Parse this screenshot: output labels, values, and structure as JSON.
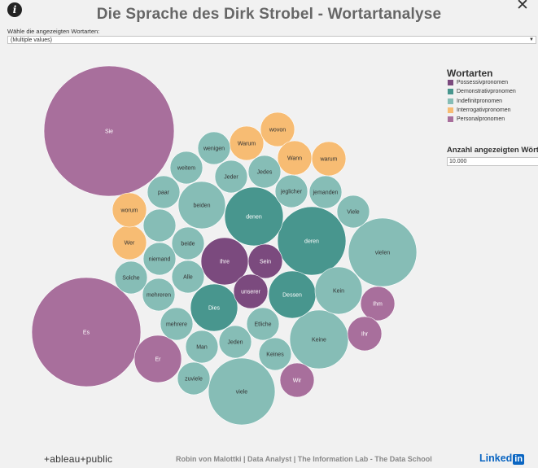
{
  "header": {
    "title": "Die Sprache des Dirk Strobel - Wortartanalyse",
    "info_icon": "info-icon",
    "close_icon": "close-icon"
  },
  "filter": {
    "label": "Wähle die angezeigten Wortarten:",
    "value": "(Multiple values)"
  },
  "legend": {
    "title": "Wortarten",
    "items": [
      {
        "label": "Possessivpronomen",
        "color": "#7b4a7e"
      },
      {
        "label": "Demonstrativpronomen",
        "color": "#48968e"
      },
      {
        "label": "Indefinitpronomen",
        "color": "#86bdb6"
      },
      {
        "label": "Interrogativpronomen",
        "color": "#f7bc73"
      },
      {
        "label": "Personalpronomen",
        "color": "#a86f9c"
      }
    ]
  },
  "parameter": {
    "title": "Anzahl angezeigten Wörter",
    "value": "10.000"
  },
  "chart_data": {
    "type": "bubble",
    "category_colors": {
      "Possessivpronomen": "#7b4a7e",
      "Demonstrativpronomen": "#48968e",
      "Indefinitpronomen": "#86bdb6",
      "Interrogativpronomen": "#f7bc73",
      "Personalpronomen": "#a86f9c"
    },
    "bubbles": [
      {
        "word": "Sie",
        "category": "Personalpronomen"
      },
      {
        "word": "Es",
        "category": "Personalpronomen"
      },
      {
        "word": "vielen",
        "category": "Indefinitpronomen"
      },
      {
        "word": "deren",
        "category": "Demonstrativpronomen"
      },
      {
        "word": "viele",
        "category": "Indefinitpronomen"
      },
      {
        "word": "Keine",
        "category": "Indefinitpronomen"
      },
      {
        "word": "denen",
        "category": "Demonstrativpronomen"
      },
      {
        "word": "Ihre",
        "category": "Possessivpronomen"
      },
      {
        "word": "Dies",
        "category": "Demonstrativpronomen"
      },
      {
        "word": "Dessen",
        "category": "Demonstrativpronomen"
      },
      {
        "word": "beiden",
        "category": "Indefinitpronomen"
      },
      {
        "word": "Er",
        "category": "Personalpronomen"
      },
      {
        "word": "Kein",
        "category": "Indefinitpronomen"
      },
      {
        "word": "Sein",
        "category": "Possessivpronomen"
      },
      {
        "word": "unserer",
        "category": "Possessivpronomen"
      },
      {
        "word": "Wer",
        "category": "Interrogativpronomen"
      },
      {
        "word": "Warum",
        "category": "Interrogativpronomen"
      },
      {
        "word": "wovon",
        "category": "Interrogativpronomen"
      },
      {
        "word": "Wann",
        "category": "Interrogativpronomen"
      },
      {
        "word": "warum",
        "category": "Interrogativpronomen"
      },
      {
        "word": "worum",
        "category": "Interrogativpronomen"
      },
      {
        "word": "Ihm",
        "category": "Personalpronomen"
      },
      {
        "word": "Ihr",
        "category": "Personalpronomen"
      },
      {
        "word": "Wir",
        "category": "Personalpronomen"
      },
      {
        "word": "Jedes",
        "category": "Indefinitpronomen"
      },
      {
        "word": "jeglicher",
        "category": "Indefinitpronomen"
      },
      {
        "word": "jemanden",
        "category": "Indefinitpronomen"
      },
      {
        "word": "Viele",
        "category": "Indefinitpronomen"
      },
      {
        "word": "Jeder",
        "category": "Indefinitpronomen"
      },
      {
        "word": "wenigen",
        "category": "Indefinitpronomen"
      },
      {
        "word": "weitem",
        "category": "Indefinitpronomen"
      },
      {
        "word": "paar",
        "category": "Indefinitpronomen"
      },
      {
        "word": "beide",
        "category": "Indefinitpronomen"
      },
      {
        "word": "niemand",
        "category": "Indefinitpronomen"
      },
      {
        "word": "Alle",
        "category": "Indefinitpronomen"
      },
      {
        "word": "Solche",
        "category": "Indefinitpronomen"
      },
      {
        "word": "mehreren",
        "category": "Indefinitpronomen"
      },
      {
        "word": "mehrere",
        "category": "Indefinitpronomen"
      },
      {
        "word": "Etliche",
        "category": "Indefinitpronomen"
      },
      {
        "word": "Man",
        "category": "Indefinitpronomen"
      },
      {
        "word": "Jeden",
        "category": "Indefinitpronomen"
      },
      {
        "word": "Keines",
        "category": "Indefinitpronomen"
      },
      {
        "word": "zuviele",
        "category": "Indefinitpronomen"
      },
      {
        "word": "",
        "category": "Indefinitpronomen"
      }
    ]
  },
  "footer": {
    "logo": "+ableau+public",
    "credit": "Robin von Malottki | Data Analyst | The Information Lab - The Data School",
    "linkedin_text": "Linked",
    "linkedin_box": "in"
  }
}
